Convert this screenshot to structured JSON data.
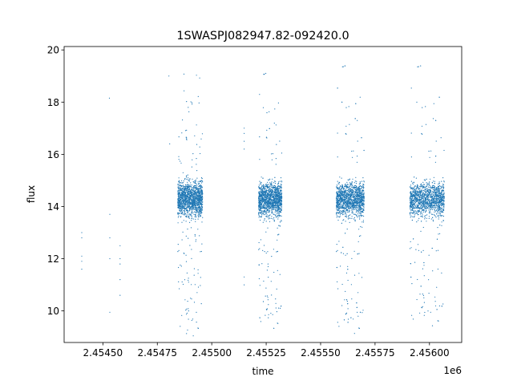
{
  "chart_data": {
    "type": "scatter",
    "title": "1SWASPJ082947.82-092420.0",
    "xlabel": "time",
    "ylabel": "flux",
    "x_offset_label": "1e6",
    "xlim": [
      2454322,
      2456148
    ],
    "ylim": [
      8.79,
      20.13
    ],
    "x_ticks": [
      2454500,
      2454750,
      2455000,
      2455250,
      2455500,
      2455750,
      2456000
    ],
    "x_tick_labels": [
      "2.45450",
      "2.45475",
      "2.45500",
      "2.45525",
      "2.45550",
      "2.45575",
      "2.45600"
    ],
    "y_ticks": [
      10,
      12,
      14,
      16,
      18,
      20
    ],
    "y_tick_labels": [
      "10",
      "12",
      "14",
      "16",
      "18",
      "20"
    ],
    "grid": false,
    "marker_color": "#1f77b4",
    "seasons": [
      {
        "x_range": [
          2454844,
          2454958
        ],
        "flux_median": 14.3,
        "flux_range": [
          9.0,
          19.3
        ]
      },
      {
        "x_range": [
          2455215,
          2455322
        ],
        "flux_median": 14.3,
        "flux_range": [
          9.2,
          19.3
        ]
      },
      {
        "x_range": [
          2455572,
          2455700
        ],
        "flux_median": 14.3,
        "flux_range": [
          9.0,
          19.6
        ]
      },
      {
        "x_range": [
          2455910,
          2456068
        ],
        "flux_median": 14.3,
        "flux_range": [
          9.3,
          19.6
        ]
      }
    ],
    "sparse_points": [
      [
        2454403,
        11.6
      ],
      [
        2454403,
        11.9
      ],
      [
        2454403,
        12.1
      ],
      [
        2454403,
        12.8
      ],
      [
        2454403,
        13.0
      ],
      [
        2454532,
        9.95
      ],
      [
        2454532,
        12.0
      ],
      [
        2454532,
        12.8
      ],
      [
        2454532,
        13.7
      ],
      [
        2454530,
        18.15
      ],
      [
        2454579,
        10.6
      ],
      [
        2454579,
        11.2
      ],
      [
        2454579,
        11.8
      ],
      [
        2454579,
        12.0
      ],
      [
        2454579,
        12.5
      ],
      [
        2455149,
        11.0
      ],
      [
        2455149,
        11.3
      ],
      [
        2455149,
        16.2
      ],
      [
        2455149,
        16.5
      ],
      [
        2455149,
        17.0
      ],
      [
        2455149,
        16.8
      ],
      [
        2454803,
        19.0
      ],
      [
        2454807,
        16.4
      ]
    ]
  }
}
